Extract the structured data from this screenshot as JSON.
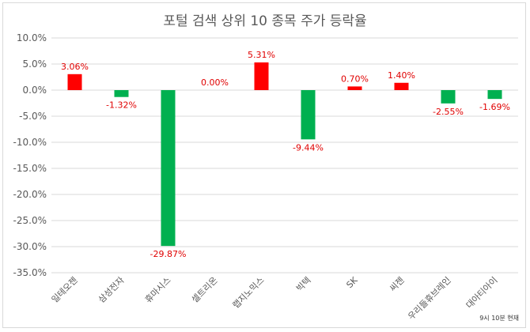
{
  "chart_data": {
    "type": "bar",
    "title": "포털 검색 상위 10 종목 주가 등락율",
    "categories": [
      "일테오젠",
      "삼성전자",
      "휴마시스",
      "셀트리온",
      "랩지노믹스",
      "빅텍",
      "SK",
      "씨젠",
      "우리들휴브레인",
      "대아티아이"
    ],
    "values": [
      3.06,
      -1.32,
      -29.87,
      0.0,
      5.31,
      -9.44,
      0.7,
      1.4,
      -2.55,
      -1.69
    ],
    "value_labels": [
      "3.06%",
      "-1.32%",
      "-29.87%",
      "0.00%",
      "5.31%",
      "-9.44%",
      "0.70%",
      "1.40%",
      "-2.55%",
      "-1.69%"
    ],
    "ylim": [
      -35,
      10
    ],
    "yticks": [
      10,
      5,
      0,
      -5,
      -10,
      -15,
      -20,
      -25,
      -30,
      -35
    ],
    "ytick_labels": [
      "10.0%",
      "5.0%",
      "0.0%",
      "-5.0%",
      "-10.0%",
      "-15.0%",
      "-20.0%",
      "-25.0%",
      "-30.0%",
      "-35.0%"
    ],
    "grid": true,
    "colors": {
      "positive": "#ff0000",
      "negative": "#00b050",
      "label": "#e00000",
      "grid": "#d9d9d9",
      "text": "#595959"
    },
    "xlabel": "",
    "ylabel": ""
  },
  "footnote": "9시 10분 현재"
}
